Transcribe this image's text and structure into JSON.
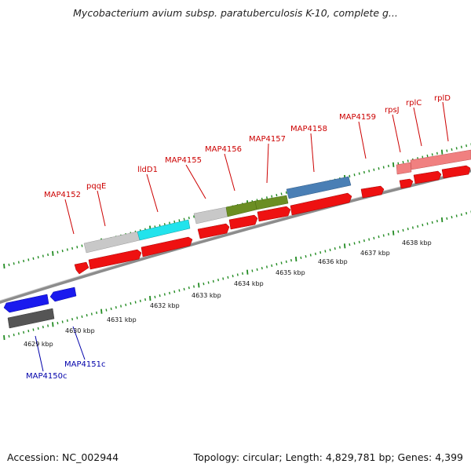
{
  "header": {
    "title": "Mycobacterium avium subsp. paratuberculosis K-10, complete g..."
  },
  "footer": {
    "accession": "Accession: NC_002944",
    "stats": "Topology: circular; Length: 4,829,781 bp; Genes: 4,399"
  },
  "colors": {
    "backbone": "#8c8c8c",
    "forward_gene_label": "#cc0000",
    "reverse_gene_label": "#0000aa",
    "tick": "#228b22",
    "forward_cds": "#ee1111",
    "reverse_cds": "#1a1aee"
  },
  "scale": {
    "tick_labels": [
      "4629 kbp",
      "4630 kbp",
      "4631 kbp",
      "4632 kbp",
      "4633 kbp",
      "4634 kbp",
      "4635 kbp",
      "4636 kbp",
      "4637 kbp",
      "4638 kbp"
    ]
  },
  "genes": {
    "forward": [
      "MAP4152",
      "pqqE",
      "lldD1",
      "MAP4155",
      "MAP4156",
      "MAP4157",
      "MAP4158",
      "MAP4159",
      "rpsJ",
      "rplC",
      "rplD"
    ],
    "reverse": [
      "MAP4150c",
      "MAP4151c"
    ]
  }
}
